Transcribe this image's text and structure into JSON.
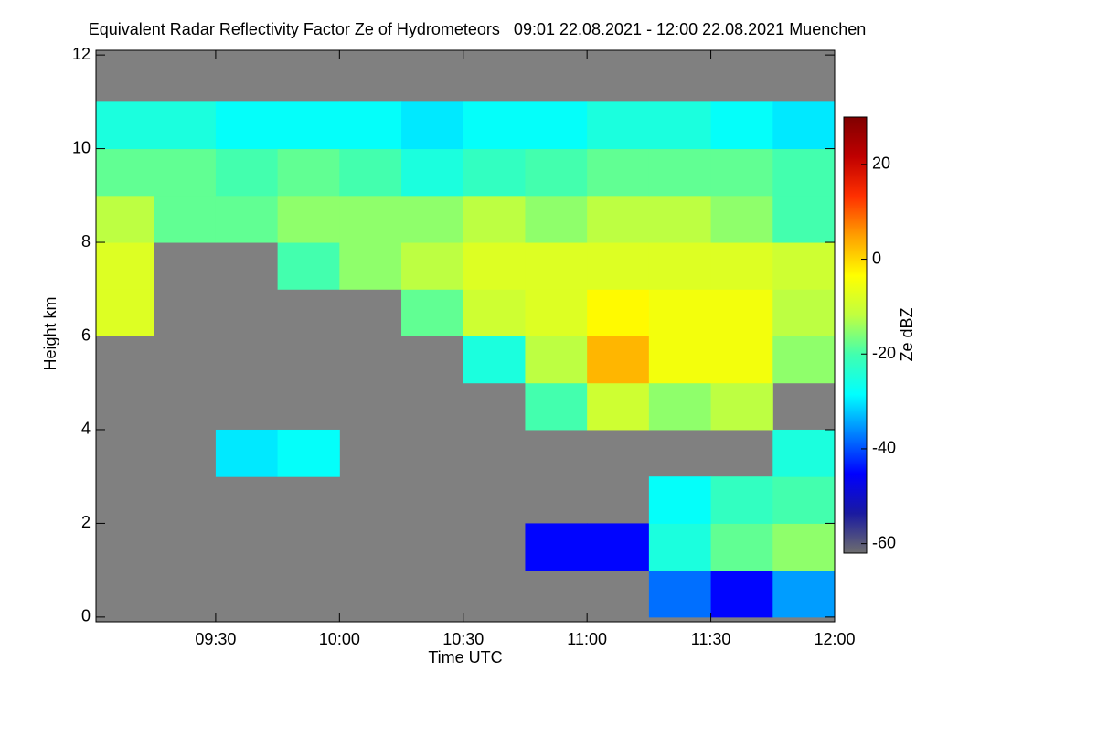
{
  "chart_data": {
    "type": "heatmap",
    "title": "Equivalent Radar Reflectivity Factor Ze of Hydrometeors   09:01 22.08.2021 - 12:00 22.08.2021 Muenchen",
    "x_label": "Time UTC",
    "y_label": "Height km",
    "colorbar_label": "Ze dBZ",
    "xlim": [
      541,
      720
    ],
    "xticks": [
      {
        "value": 570,
        "label": "09:30"
      },
      {
        "value": 600,
        "label": "10:00"
      },
      {
        "value": 630,
        "label": "10:30"
      },
      {
        "value": 660,
        "label": "11:00"
      },
      {
        "value": 690,
        "label": "11:30"
      },
      {
        "value": 720,
        "label": "12:00"
      }
    ],
    "ylim": [
      -0.1,
      12.1
    ],
    "yticks": [
      0,
      2,
      4,
      6,
      8,
      10,
      12
    ],
    "zlim": [
      -62,
      30
    ],
    "zticks": [
      -60,
      -40,
      -20,
      0,
      20
    ],
    "background": "#808080",
    "colormap": [
      "#6e6e6e",
      "#1a1aa0",
      "#0000ff",
      "#0080ff",
      "#00ffff",
      "#40ffb0",
      "#c0ff40",
      "#ffff00",
      "#ffa000",
      "#ff3000",
      "#c00000",
      "#800000"
    ],
    "x_bins": [
      540,
      555,
      570,
      585,
      600,
      615,
      630,
      645,
      660,
      675,
      690,
      705,
      720
    ],
    "y_bins": [
      0,
      1,
      2,
      3,
      4,
      5,
      6,
      7,
      8,
      9,
      10,
      11,
      12
    ],
    "z": [
      [
        null,
        null,
        null,
        null,
        null,
        null,
        null,
        null,
        null,
        -38,
        -45,
        -35
      ],
      [
        null,
        null,
        null,
        null,
        null,
        null,
        null,
        -45,
        -45,
        -25,
        -18,
        -15
      ],
      [
        null,
        null,
        null,
        null,
        null,
        null,
        null,
        null,
        null,
        -28,
        -22,
        -20
      ],
      [
        null,
        null,
        -30,
        -28,
        null,
        null,
        null,
        null,
        null,
        null,
        null,
        -25
      ],
      [
        null,
        null,
        null,
        null,
        null,
        null,
        null,
        -20,
        -10,
        -15,
        -12,
        null
      ],
      [
        null,
        null,
        null,
        null,
        null,
        null,
        -25,
        -12,
        3,
        -5,
        -5,
        -15
      ],
      [
        -8,
        null,
        null,
        null,
        null,
        -18,
        -10,
        -8,
        -3,
        -5,
        -5,
        -12
      ],
      [
        -8,
        null,
        null,
        -20,
        -15,
        -12,
        -8,
        -8,
        -8,
        -8,
        -8,
        -10
      ],
      [
        -12,
        -18,
        -18,
        -15,
        -15,
        -15,
        -12,
        -15,
        -12,
        -12,
        -15,
        -20
      ],
      [
        -18,
        -18,
        -20,
        -18,
        -20,
        -25,
        -22,
        -20,
        -18,
        -18,
        -18,
        -20
      ],
      [
        -25,
        -25,
        -28,
        -28,
        -28,
        -30,
        -28,
        -28,
        -25,
        -25,
        -28,
        -30
      ],
      [
        null,
        null,
        null,
        null,
        null,
        null,
        null,
        null,
        null,
        null,
        null,
        null
      ]
    ]
  }
}
